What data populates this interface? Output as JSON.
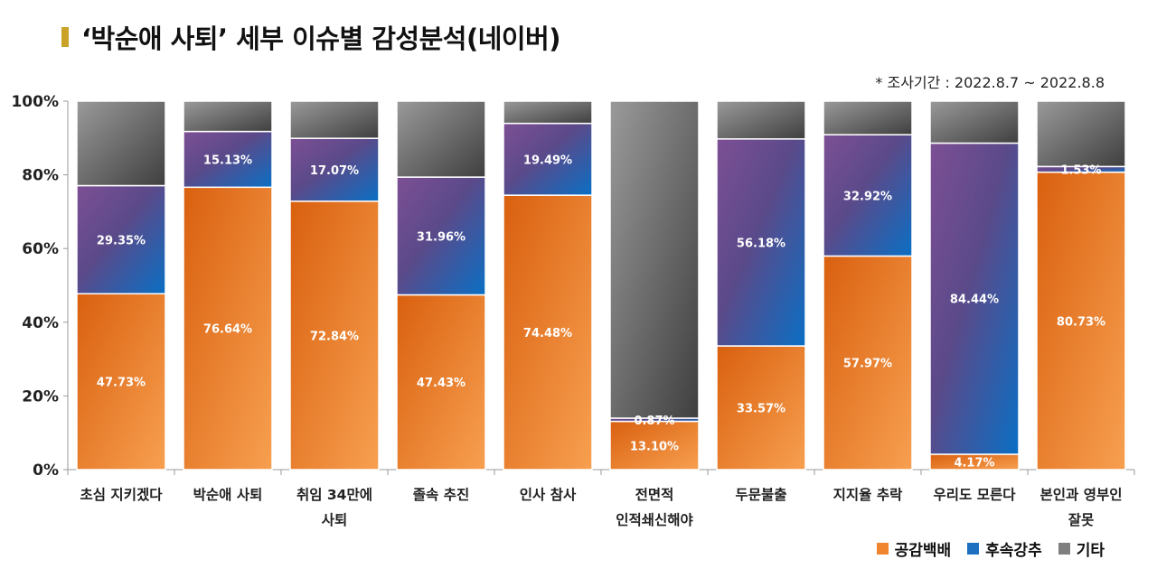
{
  "title": "‘박순애 사퇴’ 세부 이슈별 감성분석(네이버)",
  "period": "* 조사기간 : 2022.8.7 ~ 2022.8.8",
  "chart_data": {
    "type": "bar",
    "stacked": true,
    "categories": [
      [
        "초심 지키겠다"
      ],
      [
        "박순애 사퇴"
      ],
      [
        "취임 34만에",
        "사퇴"
      ],
      [
        "졸속 추진"
      ],
      [
        "인사 참사"
      ],
      [
        "전면적",
        "인적쇄신해야"
      ],
      [
        "두문불출"
      ],
      [
        "지지율 추락"
      ],
      [
        "우리도 모른다"
      ],
      [
        "본인과 영부인",
        "잘못"
      ]
    ],
    "series": [
      {
        "name": "공감백배",
        "color": "#f0852d",
        "values": [
          47.73,
          76.64,
          72.84,
          47.43,
          74.48,
          13.1,
          33.57,
          57.97,
          4.17,
          80.73
        ],
        "labels": [
          "47.73%",
          "76.64%",
          "72.84%",
          "47.43%",
          "74.48%",
          "13.10%",
          "33.57%",
          "57.97%",
          "4.17%",
          "80.73%"
        ]
      },
      {
        "name": "후속강추",
        "color": "#1d6fbf",
        "values": [
          29.35,
          15.13,
          17.07,
          31.96,
          19.49,
          0.87,
          56.18,
          32.92,
          84.44,
          1.53
        ],
        "labels": [
          "29.35%",
          "15.13%",
          "17.07%",
          "31.96%",
          "19.49%",
          "0.87%",
          "56.18%",
          "32.92%",
          "84.44%",
          "1.53%"
        ]
      },
      {
        "name": "기타",
        "color": "#7f7f7f",
        "values": [
          22.92,
          8.23,
          10.09,
          20.61,
          6.03,
          86.03,
          10.25,
          9.11,
          11.39,
          17.74
        ]
      }
    ],
    "yticks": [
      "0%",
      "20%",
      "40%",
      "60%",
      "80%",
      "100%"
    ],
    "ylim": [
      0,
      100
    ],
    "legend_position": "bottom-right"
  }
}
